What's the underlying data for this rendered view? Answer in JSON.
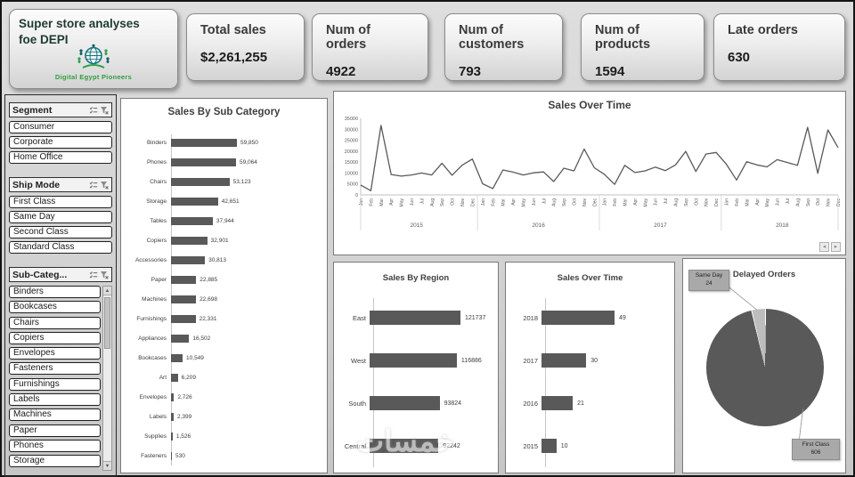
{
  "header": {
    "title_line1": "Super store analyses",
    "title_line2": "foe DEPI",
    "logo_text": "Digital Egypt Pioneers",
    "kpis": [
      {
        "label": "Total sales",
        "value": "$2,261,255"
      },
      {
        "label": "Num of orders",
        "value": "4922"
      },
      {
        "label": "Num of customers",
        "value": "793"
      },
      {
        "label": "Num of products",
        "value": "1594"
      },
      {
        "label": "Late orders",
        "value": "630"
      }
    ]
  },
  "slicers": [
    {
      "title": "Segment",
      "items": [
        "Consumer",
        "Corporate",
        "Home Office"
      ]
    },
    {
      "title": "Ship Mode",
      "items": [
        "First Class",
        "Same Day",
        "Second Class",
        "Standard Class"
      ]
    },
    {
      "title": "Sub-Categ...",
      "items": [
        "Binders",
        "Bookcases",
        "Chairs",
        "Copiers",
        "Envelopes",
        "Fasteners",
        "Furnishings",
        "Labels",
        "Machines",
        "Paper",
        "Phones",
        "Storage"
      ]
    }
  ],
  "icons": {
    "scroll_up": "▲",
    "scroll_down": "▼",
    "nav_left": "◂",
    "nav_right": "▸"
  },
  "watermark": "خمسات",
  "chart_data": [
    {
      "id": "sales_by_sub_category",
      "type": "bar",
      "orientation": "horizontal",
      "title": "Sales By Sub Category",
      "categories": [
        "Binders",
        "Phones",
        "Chairs",
        "Storage",
        "Tables",
        "Copiers",
        "Accessories",
        "Paper",
        "Machines",
        "Furnishings",
        "Appliances",
        "Bookcases",
        "Art",
        "Envelopes",
        "Labels",
        "Supplies",
        "Fasteners"
      ],
      "values": [
        59850,
        59064,
        53123,
        42651,
        37944,
        32901,
        30813,
        22885,
        22698,
        22331,
        16502,
        10549,
        6209,
        2726,
        2399,
        1526,
        530
      ],
      "value_labels": [
        "59,850",
        "59,064",
        "53,123",
        "42,651",
        "37,944",
        "32,901",
        "30,813",
        "22,885",
        "22,698",
        "22,331",
        "16,502",
        "10,549",
        "6,209",
        "2,726",
        "2,399",
        "1,526",
        "530"
      ],
      "bar_color": "#595959"
    },
    {
      "id": "sales_over_time_monthly",
      "type": "line",
      "title": "Sales Over Time",
      "ylim": [
        0,
        35000
      ],
      "ytick_labels": [
        "0",
        "5000",
        "10000",
        "15000",
        "20000",
        "25000",
        "30000",
        "35000"
      ],
      "months": [
        "Jan",
        "Feb",
        "Mar",
        "Apr",
        "May",
        "Jun",
        "Jul",
        "Aug",
        "Sep",
        "Oct",
        "Nov",
        "Dec"
      ],
      "years": [
        "2015",
        "2016",
        "2017",
        "2018"
      ],
      "values": [
        4500,
        1900,
        31800,
        9300,
        8600,
        9100,
        10000,
        9100,
        14500,
        9000,
        13600,
        16400,
        5100,
        2900,
        11400,
        10400,
        9100,
        10100,
        10500,
        6100,
        12200,
        11000,
        21000,
        12400,
        9400,
        4800,
        13500,
        10200,
        11000,
        12700,
        11100,
        13700,
        19900,
        10700,
        18700,
        19400,
        14000,
        6800,
        15200,
        13700,
        12800,
        16100,
        14800,
        13500,
        30900,
        9900,
        29700,
        21600
      ],
      "line_color": "#595959",
      "grid": false,
      "legend": "none"
    },
    {
      "id": "sales_by_region",
      "type": "bar",
      "orientation": "horizontal",
      "title": "Sales By Region",
      "categories": [
        "East",
        "West",
        "South",
        "Central"
      ],
      "values": [
        121737,
        116886,
        93824,
        92242
      ],
      "value_labels": [
        "121737",
        "116886",
        "93824",
        "92242"
      ],
      "bar_color": "#595959"
    },
    {
      "id": "sales_over_time_yearly",
      "type": "bar",
      "orientation": "horizontal",
      "title": "Sales Over Time",
      "categories": [
        "2018",
        "2017",
        "2016",
        "2015"
      ],
      "values": [
        49,
        30,
        21,
        10
      ],
      "value_labels": [
        "49",
        "30",
        "21",
        "10"
      ],
      "bar_color": "#595959"
    },
    {
      "id": "delayed_orders",
      "type": "pie",
      "title": "Delayed Orders",
      "slices": [
        {
          "label": "First Class",
          "value": 606,
          "color": "#595959"
        },
        {
          "label": "Same Day",
          "value": 24,
          "color": "#bdbdbd"
        }
      ],
      "callouts": [
        {
          "label": "Same Day",
          "value": "24"
        },
        {
          "label": "First Class",
          "value": "606"
        }
      ]
    }
  ]
}
